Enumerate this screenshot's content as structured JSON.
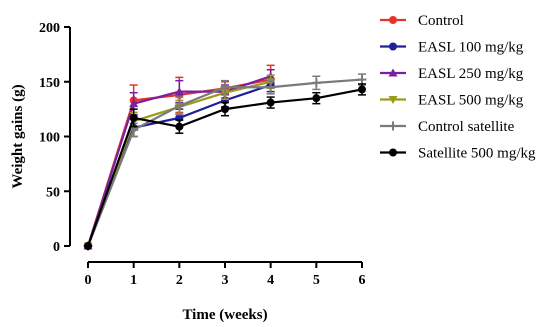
{
  "chart_data": {
    "type": "line",
    "title": "",
    "xlabel": "Time (weeks)",
    "ylabel": "Weight gains (g)",
    "xlim": [
      0,
      6
    ],
    "ylim": [
      0,
      200
    ],
    "x_ticks": [
      0,
      1,
      2,
      3,
      4,
      5,
      6
    ],
    "y_ticks": [
      0,
      50,
      100,
      150,
      200
    ],
    "grid": false,
    "legend_position": "right",
    "series": [
      {
        "name": "Control",
        "color": "#e8332a",
        "marker": "circle",
        "x": [
          0,
          1,
          2,
          3,
          4
        ],
        "values": [
          0,
          133,
          138,
          144,
          152
        ],
        "errors": [
          0,
          14,
          16,
          6,
          13
        ]
      },
      {
        "name": "EASL 100 mg/kg",
        "color": "#1f1f9a",
        "marker": "circle",
        "x": [
          0,
          1,
          2,
          3,
          4
        ],
        "values": [
          0,
          108,
          117,
          133,
          147
        ],
        "errors": [
          0,
          8,
          8,
          6,
          6
        ]
      },
      {
        "name": "EASL 250 mg/kg",
        "color": "#7a1fa0",
        "marker": "triangle",
        "x": [
          0,
          1,
          2,
          3,
          4
        ],
        "values": [
          0,
          130,
          141,
          141,
          155
        ],
        "errors": [
          0,
          10,
          10,
          6,
          6
        ]
      },
      {
        "name": "EASL 500 mg/kg",
        "color": "#9c9a1c",
        "marker": "triangle-down",
        "x": [
          0,
          1,
          2,
          3,
          4
        ],
        "values": [
          0,
          114,
          127,
          140,
          150
        ],
        "errors": [
          0,
          8,
          6,
          6,
          6
        ]
      },
      {
        "name": "Control satellite",
        "color": "#7a7a7a",
        "marker": "plus",
        "x": [
          0,
          1,
          2,
          3,
          4,
          5,
          6
        ],
        "values": [
          0,
          106,
          128,
          145,
          145,
          149,
          152
        ],
        "errors": [
          0,
          6,
          8,
          6,
          6,
          6,
          5
        ]
      },
      {
        "name": "Satellite 500 mg/kg",
        "color": "#000000",
        "marker": "circle",
        "x": [
          0,
          1,
          2,
          3,
          4,
          5,
          6
        ],
        "values": [
          0,
          117,
          109,
          125,
          131,
          135,
          143
        ],
        "errors": [
          0,
          8,
          6,
          6,
          5,
          5,
          5
        ]
      }
    ]
  }
}
